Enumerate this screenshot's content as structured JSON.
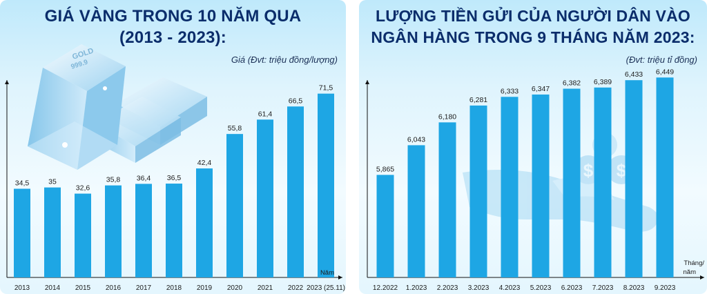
{
  "chart_data": [
    {
      "type": "bar",
      "title": "GIÁ VÀNG TRONG 10 NĂM QUA (2013 - 2023):",
      "title_lines": [
        "GIÁ VÀNG TRONG 10 NĂM QUA",
        "(2013 - 2023):"
      ],
      "ylabel": "Giá (Đvt: triệu đồng/lượng)",
      "xlabel": "Năm",
      "categories": [
        "2013",
        "2014",
        "2015",
        "2016",
        "2017",
        "2018",
        "2019",
        "2020",
        "2021",
        "2022",
        "2023 (25.11)"
      ],
      "values": [
        34.5,
        35,
        32.6,
        35.8,
        36.4,
        36.5,
        42.4,
        55.8,
        61.4,
        66.5,
        71.5
      ],
      "value_labels": [
        "34,5",
        "35",
        "32,6",
        "35,8",
        "36,4",
        "36,5",
        "42,4",
        "55,8",
        "61,4",
        "66,5",
        "71,5"
      ],
      "ylim": [
        0,
        80
      ],
      "grid": false,
      "bar_color": "#1ea6e4",
      "axis_color": "#111111"
    },
    {
      "type": "bar",
      "title": "LƯỢNG TIỀN GỬI CỦA NGƯỜI DÂN VÀO NGÂN HÀNG TRONG 9 THÁNG NĂM 2023:",
      "title_lines": [
        "LƯỢNG TIỀN GỬI CỦA NGƯỜI DÂN VÀO",
        "NGÂN HÀNG TRONG 9 THÁNG NĂM 2023:"
      ],
      "ylabel": "(Đvt: triệu tỉ đồng)",
      "xlabel": "Tháng/ năm",
      "xlabel_lines": [
        "Tháng/",
        "năm"
      ],
      "categories": [
        "12.2022",
        "1.2023",
        "2.2023",
        "3.2023",
        "4.2023",
        "5.2023",
        "6.2023",
        "7.2023",
        "8.2023",
        "9.2023"
      ],
      "values": [
        5.865,
        6.043,
        6.18,
        6.281,
        6.333,
        6.347,
        6.382,
        6.389,
        6.433,
        6.449
      ],
      "value_labels": [
        "5,865",
        "6,043",
        "6,180",
        "6,281",
        "6,333",
        "6,347",
        "6,382",
        "6,389",
        "6,433",
        "6,449"
      ],
      "ylim": [
        5.25,
        6.5
      ],
      "grid": false,
      "bar_color": "#1ea6e4",
      "axis_color": "#111111"
    }
  ],
  "decorations": {
    "gold_bar_label": "GOLD",
    "gold_bar_purity": "999.9",
    "coin_symbol": "$"
  }
}
